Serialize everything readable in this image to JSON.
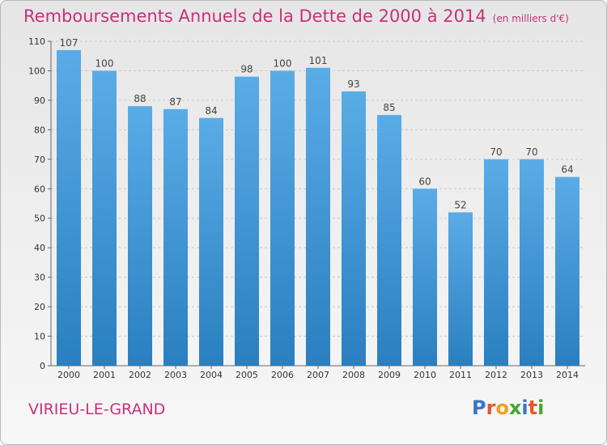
{
  "title": "Remboursements Annuels de la Dette de 2000 à 2014",
  "unit": "(en milliers d'€)",
  "location": "VIRIEU-LE-GRAND",
  "logo": "Proxiti",
  "logo_colors": [
    "#3b73c8",
    "#e2572a",
    "#f0a020",
    "#44a830",
    "#3b73c8",
    "#e2572a",
    "#44a830"
  ],
  "colors": {
    "bar_light": "#5aace6",
    "bar_dark": "#2a7fc0",
    "title": "#c8307a"
  },
  "chart_data": {
    "type": "bar",
    "title": "Remboursements Annuels de la Dette de 2000 à 2014",
    "ylabel": "(en milliers d'€)",
    "xlabel": "",
    "categories": [
      "2000",
      "2001",
      "2002",
      "2003",
      "2004",
      "2005",
      "2006",
      "2007",
      "2008",
      "2009",
      "2010",
      "2011",
      "2012",
      "2013",
      "2014"
    ],
    "values": [
      107,
      100,
      88,
      87,
      84,
      98,
      100,
      101,
      93,
      85,
      60,
      52,
      70,
      70,
      64
    ],
    "ylim": [
      0,
      110
    ],
    "yticks": [
      0,
      10,
      20,
      30,
      40,
      50,
      60,
      70,
      80,
      90,
      100,
      110
    ],
    "grid": true
  }
}
